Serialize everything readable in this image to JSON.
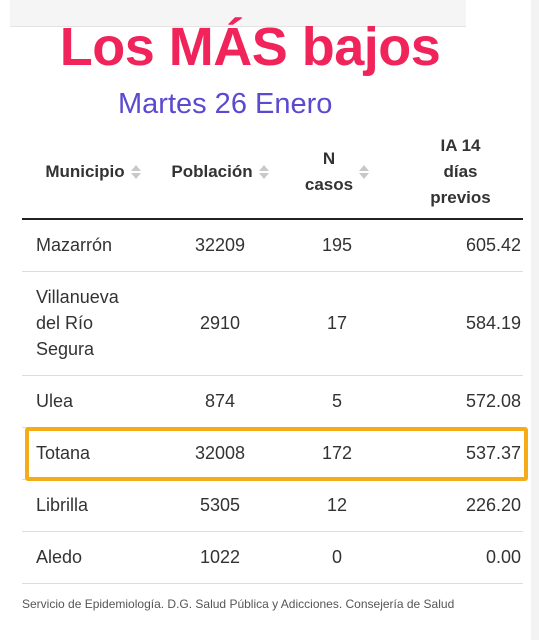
{
  "headline": "Los MÁS bajos",
  "subheadline": "Martes 26 Enero",
  "table": {
    "columns": [
      {
        "lines": [
          "Municipio"
        ]
      },
      {
        "lines": [
          "Población"
        ]
      },
      {
        "lines": [
          "N",
          "casos"
        ]
      },
      {
        "lines": [
          "IA 14",
          "días",
          "previos"
        ]
      }
    ],
    "rows": [
      {
        "municipio": [
          "Mazarrón"
        ],
        "poblacion": "32209",
        "casos": "195",
        "ia14": "605.42"
      },
      {
        "municipio": [
          "Villanueva",
          "del Río",
          "Segura"
        ],
        "poblacion": "2910",
        "casos": "17",
        "ia14": "584.19"
      },
      {
        "municipio": [
          "Ulea"
        ],
        "poblacion": "874",
        "casos": "5",
        "ia14": "572.08"
      },
      {
        "municipio": [
          "Totana"
        ],
        "poblacion": "32008",
        "casos": "172",
        "ia14": "537.37"
      },
      {
        "municipio": [
          "Librilla"
        ],
        "poblacion": "5305",
        "casos": "12",
        "ia14": "226.20"
      },
      {
        "municipio": [
          "Aledo"
        ],
        "poblacion": "1022",
        "casos": "0",
        "ia14": "0.00"
      }
    ]
  },
  "highlight_color": "#f4ac18",
  "headline_color": "#f0245a",
  "subheadline_color": "#5a4ad1",
  "source": "Servicio de Epidemiología. D.G. Salud Pública y Adicciones. Consejería de Salud"
}
